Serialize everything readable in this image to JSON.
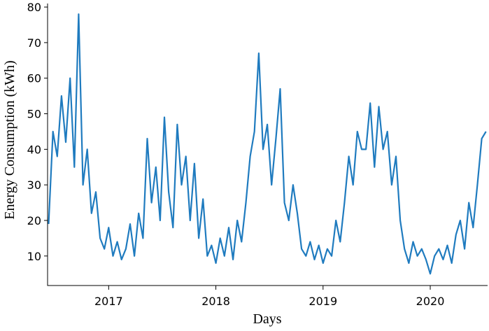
{
  "chart_data": {
    "type": "line",
    "x_label": "Days",
    "y_label": "Energy Consumption (kWh)",
    "x": [
      2016.44,
      2016.48,
      2016.52,
      2016.56,
      2016.6,
      2016.64,
      2016.68,
      2016.72,
      2016.76,
      2016.8,
      2016.84,
      2016.88,
      2016.92,
      2016.96,
      2017.0,
      2017.04,
      2017.08,
      2017.12,
      2017.16,
      2017.2,
      2017.24,
      2017.28,
      2017.32,
      2017.36,
      2017.4,
      2017.44,
      2017.48,
      2017.52,
      2017.56,
      2017.6,
      2017.64,
      2017.68,
      2017.72,
      2017.76,
      2017.8,
      2017.84,
      2017.88,
      2017.92,
      2017.96,
      2018.0,
      2018.04,
      2018.08,
      2018.12,
      2018.16,
      2018.2,
      2018.24,
      2018.28,
      2018.32,
      2018.36,
      2018.4,
      2018.44,
      2018.48,
      2018.52,
      2018.56,
      2018.6,
      2018.64,
      2018.68,
      2018.72,
      2018.76,
      2018.8,
      2018.84,
      2018.88,
      2018.92,
      2018.96,
      2019.0,
      2019.04,
      2019.08,
      2019.12,
      2019.16,
      2019.2,
      2019.24,
      2019.28,
      2019.32,
      2019.36,
      2019.4,
      2019.44,
      2019.48,
      2019.52,
      2019.56,
      2019.6,
      2019.64,
      2019.68,
      2019.72,
      2019.76,
      2019.8,
      2019.84,
      2019.88,
      2019.92,
      2019.96,
      2020.0,
      2020.04,
      2020.08,
      2020.12,
      2020.16,
      2020.2,
      2020.24,
      2020.28,
      2020.32,
      2020.36,
      2020.4,
      2020.44,
      2020.48,
      2020.52
    ],
    "series": [
      {
        "color": "#1f7bbf",
        "values": [
          19,
          45,
          38,
          55,
          42,
          60,
          35,
          78,
          30,
          40,
          22,
          28,
          15,
          12,
          18,
          10,
          14,
          9,
          12,
          19,
          10,
          22,
          15,
          43,
          25,
          35,
          20,
          49,
          28,
          18,
          47,
          30,
          38,
          20,
          36,
          15,
          26,
          10,
          13,
          8,
          15,
          10,
          18,
          9,
          20,
          14,
          25,
          38,
          45,
          67,
          40,
          47,
          30,
          43,
          57,
          25,
          20,
          30,
          22,
          12,
          10,
          14,
          9,
          13,
          8,
          12,
          10,
          20,
          14,
          25,
          38,
          30,
          45,
          40,
          40,
          53,
          35,
          52,
          40,
          45,
          30,
          38,
          20,
          12,
          8,
          14,
          10,
          12,
          9,
          5,
          10,
          12,
          9,
          13,
          8,
          16,
          20,
          12,
          25,
          18,
          30,
          43,
          45
        ]
      }
    ],
    "xlim": [
      2016.43,
      2020.535
    ],
    "xticks": [
      2017,
      2018,
      2019,
      2020
    ],
    "ylim": [
      1.7,
      81
    ],
    "yticks": [
      10,
      20,
      30,
      40,
      50,
      60,
      70,
      80
    ],
    "grid": false
  }
}
